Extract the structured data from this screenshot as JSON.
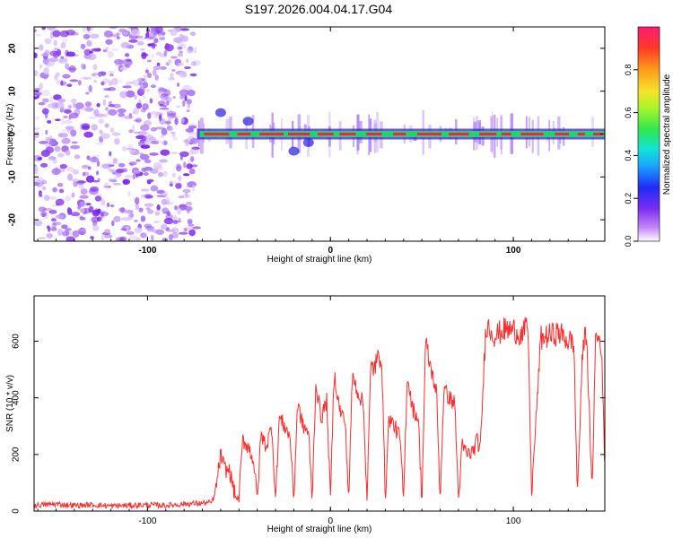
{
  "title": "S197.2026.004.04.17.G04",
  "colors": {
    "snr_line": "#ff2a2a",
    "axis": "#000000",
    "track_green": "#22d46a",
    "track_core": "#ff1a4a",
    "speckle": "#7a1ff0"
  },
  "chart_data": [
    {
      "type": "heatmap",
      "name": "spectrogram",
      "xlabel": "Height of straight line (km)",
      "ylabel": "Frequency (Hz)",
      "xlim": [
        -162,
        150
      ],
      "ylim": [
        -25,
        25
      ],
      "xticks": [
        -100,
        0,
        100
      ],
      "yticks": [
        -20,
        -10,
        0,
        10,
        20
      ],
      "xtick_labels": [
        "-100",
        "0",
        "100"
      ],
      "ytick_labels": [
        "-20",
        "-10",
        "0",
        "10",
        "20"
      ],
      "noise_region_x": [
        -162,
        -73
      ],
      "signal_start_x": -73,
      "track_frequency_hz": 0,
      "colorbar": {
        "label": "Normalized spectral amplitude",
        "range": [
          0,
          1
        ],
        "ticks": [
          0.0,
          0.2,
          0.4,
          0.6,
          0.8
        ],
        "tick_labels": [
          "0.0",
          "0.2",
          "0.4",
          "0.6",
          "0.8"
        ]
      }
    },
    {
      "type": "line",
      "name": "snr",
      "xlabel": "Height of straight line (km)",
      "ylabel": "SNR (10 * v/v)",
      "xlim": [
        -162,
        150
      ],
      "ylim": [
        0,
        760
      ],
      "xticks": [
        -100,
        0,
        100
      ],
      "yticks": [
        0,
        200,
        400,
        600
      ],
      "xtick_labels": [
        "-100",
        "0",
        "100"
      ],
      "ytick_labels": [
        "0",
        "200",
        "400",
        "600"
      ],
      "series": [
        {
          "name": "SNR",
          "x": [
            -162,
            -150,
            -140,
            -130,
            -120,
            -110,
            -100,
            -90,
            -80,
            -70,
            -65,
            -63,
            -60,
            -58,
            -55,
            -52,
            -50,
            -48,
            -45,
            -42,
            -40,
            -38,
            -35,
            -32,
            -30,
            -28,
            -25,
            -22,
            -20,
            -18,
            -15,
            -12,
            -10,
            -8,
            -5,
            -2,
            0,
            2,
            5,
            8,
            10,
            12,
            15,
            18,
            20,
            22,
            25,
            28,
            30,
            32,
            35,
            38,
            40,
            42,
            45,
            48,
            50,
            52,
            55,
            58,
            60,
            62,
            65,
            68,
            70,
            72,
            75,
            78,
            80,
            82,
            85,
            90,
            95,
            100,
            105,
            108,
            110,
            115,
            120,
            125,
            130,
            133,
            135,
            138,
            140,
            143,
            145,
            148,
            150
          ],
          "values": [
            20,
            25,
            20,
            22,
            18,
            20,
            22,
            20,
            25,
            28,
            30,
            60,
            200,
            150,
            140,
            50,
            40,
            250,
            230,
            180,
            40,
            270,
            230,
            300,
            40,
            330,
            300,
            260,
            40,
            380,
            300,
            280,
            40,
            450,
            330,
            390,
            40,
            490,
            360,
            320,
            40,
            480,
            420,
            380,
            40,
            500,
            520,
            560,
            40,
            330,
            300,
            260,
            40,
            480,
            360,
            330,
            40,
            590,
            500,
            420,
            40,
            430,
            400,
            380,
            40,
            230,
            200,
            210,
            250,
            220,
            660,
            620,
            640,
            640,
            620,
            660,
            60,
            610,
            620,
            630,
            600,
            600,
            60,
            580,
            640,
            60,
            620,
            600,
            170
          ]
        }
      ]
    }
  ]
}
